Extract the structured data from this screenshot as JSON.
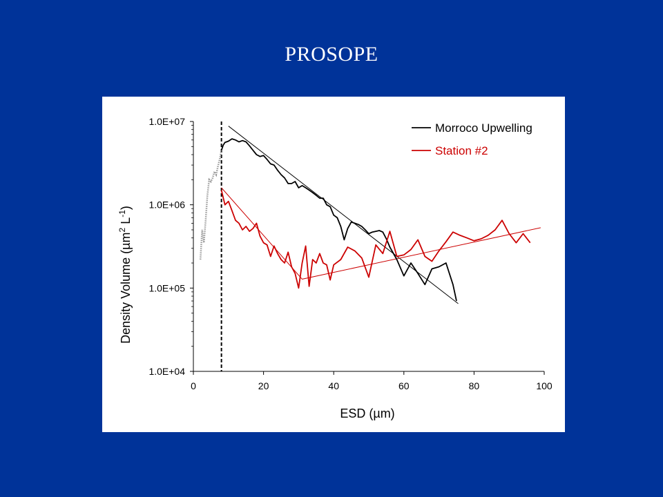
{
  "slide": {
    "title": "PROSOPE"
  },
  "colors": {
    "background": "#003399",
    "panel": "#ffffff",
    "series1": "#000000",
    "series2": "#cc0000",
    "presegment": "#999999"
  },
  "chart_data": {
    "type": "line",
    "title": "",
    "xlabel": "ESD (µm)",
    "ylabel_main": "Density Volume (µm",
    "ylabel_sup1": "2",
    "ylabel_mid": " L",
    "ylabel_sup2": "-1",
    "ylabel_end": ")",
    "xlim": [
      0,
      100
    ],
    "ylim": [
      10000,
      10000000
    ],
    "y_scale": "log",
    "x_ticks": [
      0,
      20,
      40,
      60,
      80,
      100
    ],
    "y_ticks": [
      10000,
      100000,
      1000000,
      10000000
    ],
    "y_tick_labels": [
      "1.0E+04",
      "1.0E+05",
      "1.0E+06",
      "1.0E+07"
    ],
    "cutoff_x": 8,
    "legend_position": "top-right",
    "series": [
      {
        "name": "Morroco Upwelling",
        "color": "#000000",
        "x": [
          8,
          8.5,
          9,
          10,
          11,
          12,
          13,
          14,
          15,
          16,
          17,
          18,
          19,
          20,
          21,
          22,
          23,
          24,
          25,
          26,
          27,
          28,
          29,
          30,
          31,
          32,
          33,
          34,
          35,
          36,
          37,
          38,
          39,
          40,
          41,
          42,
          43,
          44,
          45,
          46,
          47,
          48,
          49,
          50,
          51,
          52,
          53,
          54,
          55,
          56,
          58,
          60,
          62,
          64,
          66,
          68,
          70,
          72,
          74,
          75
        ],
        "y": [
          4500000,
          5200000,
          5600000,
          5800000,
          6200000,
          6000000,
          5700000,
          5900000,
          5700000,
          5100000,
          4500000,
          4000000,
          3800000,
          3900000,
          3500000,
          3100000,
          3000000,
          2600000,
          2300000,
          2100000,
          1800000,
          1800000,
          1900000,
          1600000,
          1700000,
          1600000,
          1500000,
          1400000,
          1300000,
          1200000,
          1200000,
          1000000,
          950000,
          750000,
          700000,
          550000,
          380000,
          520000,
          620000,
          600000,
          580000,
          550000,
          500000,
          450000,
          470000,
          480000,
          490000,
          470000,
          390000,
          310000,
          220000,
          140000,
          200000,
          150000,
          110000,
          170000,
          180000,
          200000,
          110000,
          70000
        ]
      },
      {
        "name": "Station #2",
        "color": "#cc0000",
        "x": [
          8,
          9,
          10,
          11,
          12,
          13,
          14,
          15,
          16,
          17,
          18,
          19,
          20,
          21,
          22,
          23,
          24,
          25,
          26,
          27,
          28,
          29,
          30,
          31,
          32,
          33,
          34,
          35,
          36,
          37,
          38,
          39,
          40,
          42,
          44,
          46,
          48,
          50,
          52,
          54,
          56,
          58,
          60,
          62,
          64,
          66,
          68,
          70,
          72,
          74,
          76,
          78,
          80,
          82,
          84,
          86,
          88,
          90,
          92,
          94,
          96
        ],
        "y": [
          1500000,
          1000000,
          1100000,
          850000,
          650000,
          600000,
          500000,
          550000,
          480000,
          520000,
          600000,
          420000,
          350000,
          330000,
          240000,
          320000,
          260000,
          220000,
          200000,
          270000,
          180000,
          150000,
          100000,
          200000,
          320000,
          105000,
          220000,
          200000,
          260000,
          200000,
          190000,
          125000,
          190000,
          220000,
          310000,
          280000,
          230000,
          135000,
          330000,
          260000,
          480000,
          240000,
          250000,
          290000,
          380000,
          240000,
          210000,
          280000,
          360000,
          470000,
          430000,
          400000,
          370000,
          390000,
          430000,
          500000,
          650000,
          450000,
          350000,
          450000,
          350000
        ]
      }
    ],
    "presegment": {
      "x": [
        2,
        2.5,
        3,
        3.5,
        4,
        4.5,
        5,
        5.5,
        6,
        6.5,
        7,
        7.5,
        8
      ],
      "y": [
        220000,
        500000,
        350000,
        650000,
        1300000,
        2000000,
        1900000,
        2100000,
        2500000,
        2300000,
        2900000,
        3500000,
        4500000
      ]
    },
    "fit_lines": [
      {
        "series": "Morroco Upwelling",
        "color": "#000000",
        "x": [
          10,
          75.5
        ],
        "y": [
          8800000,
          65000
        ]
      },
      {
        "series": "Station #2",
        "color": "#cc0000",
        "x": [
          8,
          31,
          99
        ],
        "y": [
          1600000,
          128000,
          530000
        ]
      }
    ]
  }
}
